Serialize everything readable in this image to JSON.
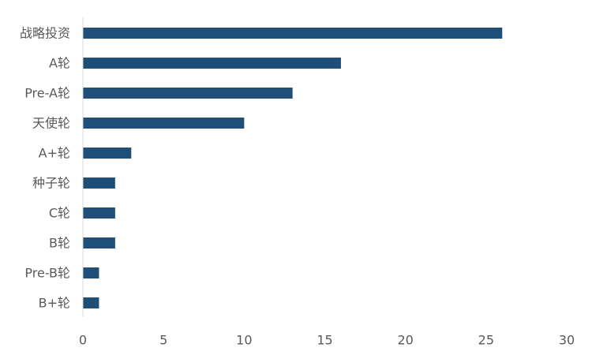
{
  "chart_data": {
    "type": "bar",
    "orientation": "horizontal",
    "title": "",
    "xlabel": "",
    "ylabel": "",
    "categories": [
      "战略投资",
      "A轮",
      "Pre-A轮",
      "天使轮",
      "A+轮",
      "种子轮",
      "C轮",
      "B轮",
      "Pre-B轮",
      "B+轮"
    ],
    "values": [
      26,
      16,
      13,
      10,
      3,
      2,
      2,
      2,
      1,
      1
    ],
    "xlim": [
      0,
      30
    ],
    "xticks": [
      "0",
      "5",
      "10",
      "15",
      "20",
      "25",
      "30"
    ],
    "grid": false,
    "legend": "none",
    "bar_color": "#1f4e79"
  }
}
